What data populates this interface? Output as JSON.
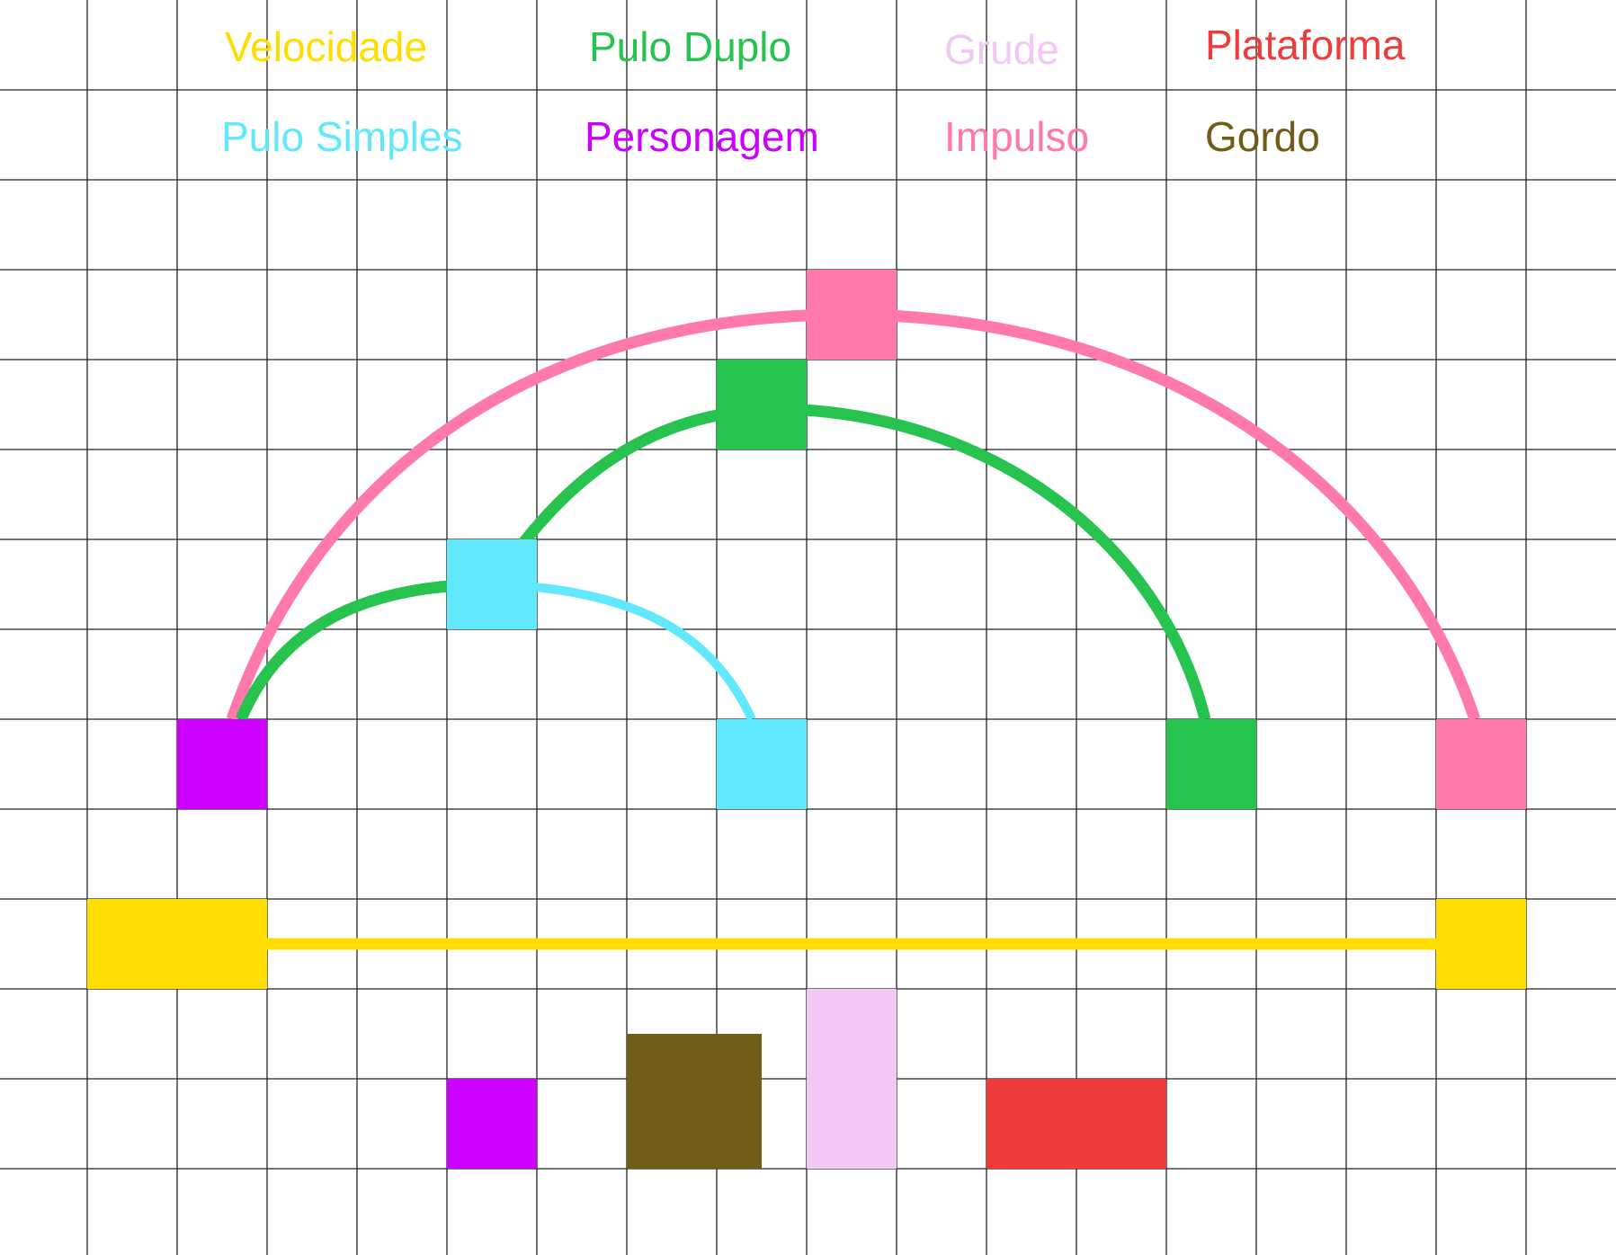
{
  "legend": [
    {
      "key": "velocidade",
      "label": "Velocidade",
      "color": "#ffdd00"
    },
    {
      "key": "pulo_duplo",
      "label": "Pulo Duplo",
      "color": "#26c34f"
    },
    {
      "key": "grude",
      "label": "Grude",
      "color": "#f2c8f5"
    },
    {
      "key": "plataforma",
      "label": "Plataforma",
      "color": "#ef3b3b"
    },
    {
      "key": "pulo_simples",
      "label": "Pulo Simples",
      "color": "#62e8fd"
    },
    {
      "key": "personagem",
      "label": "Personagem",
      "color": "#cc00ff"
    },
    {
      "key": "impulso",
      "label": "Impulso",
      "color": "#ff7aaa"
    },
    {
      "key": "gordo",
      "label": "Gordo",
      "color": "#6f5c16"
    }
  ],
  "grid": {
    "cols": 18,
    "rows": 14
  },
  "colors": {
    "grid_line": "#222222",
    "background": "#ffffff"
  }
}
